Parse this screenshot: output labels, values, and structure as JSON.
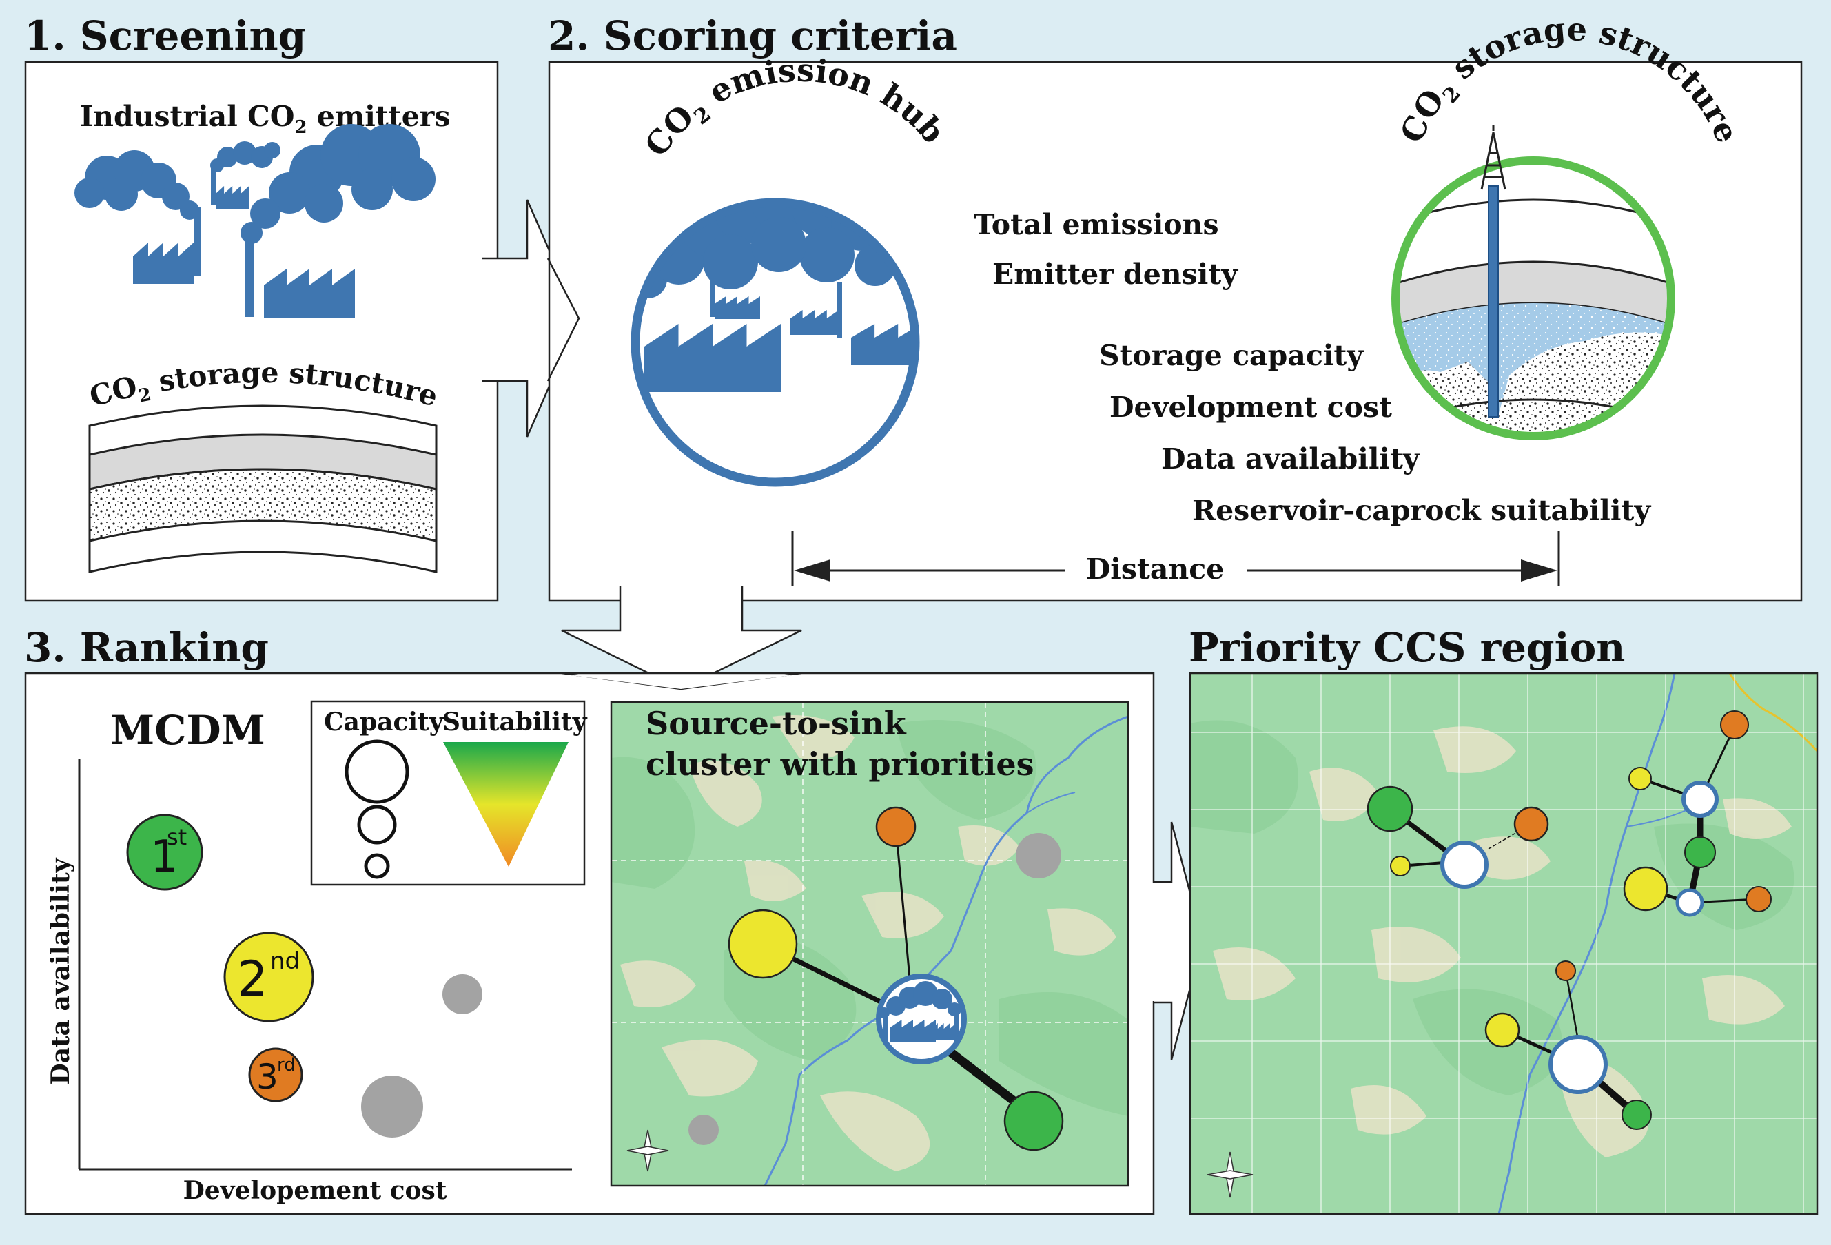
{
  "sections": {
    "screening": {
      "title": "1. Screening",
      "emitters_label": "Industrial CO",
      "emitters_sub": "2",
      "emitters_suffix": " emitters",
      "storage_label_co": "CO",
      "storage_label_sub": "2",
      "storage_label_rest": " storage structure"
    },
    "scoring": {
      "title": "2. Scoring criteria",
      "hub_label_co": "CO",
      "hub_label_sub": "2",
      "hub_label_rest": " emission hub",
      "storage_label_co": "CO",
      "storage_label_sub": "2",
      "storage_label_rest": " storage structure",
      "criteria": [
        "Total emissions",
        "Emitter density",
        "Storage capacity",
        "Development cost",
        "Data availability",
        "Reservoir-caprock suitability"
      ],
      "distance_label": "Distance"
    },
    "ranking": {
      "title": "3. Ranking",
      "method": "MCDM",
      "legend_capacity": "Capacity",
      "legend_suitability": "Suitability",
      "y_axis": "Data availability",
      "x_axis": "Developement cost",
      "ranks": [
        {
          "num": "1",
          "sup": "st",
          "color": "#3cb54a"
        },
        {
          "num": "2",
          "sup": "nd",
          "color": "#ece62e"
        },
        {
          "num": "3",
          "sup": "rd",
          "color": "#e07b22"
        }
      ],
      "cluster_title_1": "Source-to-sink",
      "cluster_title_2": "cluster with priorities"
    },
    "priority": {
      "title": "Priority CCS region"
    }
  },
  "colors": {
    "hub_blue": "#3f76b0",
    "storage_green": "#5cbf4e",
    "map_green": "#9fd9a9",
    "rank_green": "#3cb54a",
    "rank_yellow": "#ece62e",
    "rank_orange": "#e07b22",
    "unranked_gray": "#a3a3a3"
  }
}
